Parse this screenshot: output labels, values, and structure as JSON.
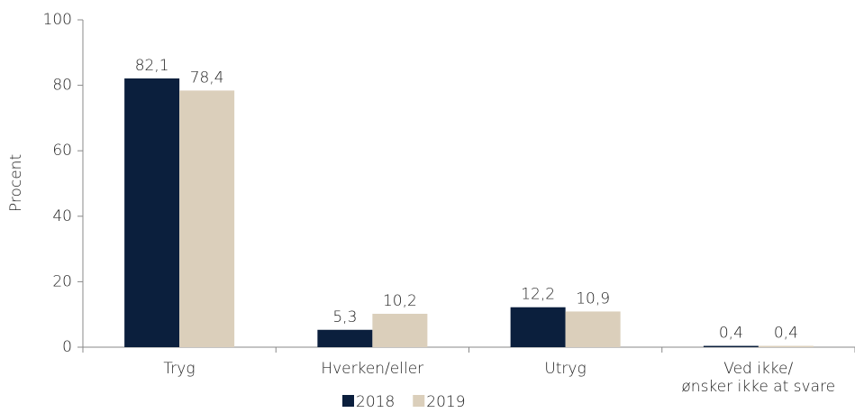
{
  "chart_data": {
    "type": "bar",
    "y_label": "Procent",
    "categories": [
      "Tryg",
      "Hverken/eller",
      "Utryg",
      "Ved ikke/\nønsker ikke at svare"
    ],
    "series": [
      {
        "name": "2018",
        "color": "#0b1f3d",
        "values": [
          82.1,
          5.3,
          12.2,
          0.4
        ],
        "value_labels": [
          "82,1",
          "5,3",
          "12,2",
          "0,4"
        ]
      },
      {
        "name": "2019",
        "color": "#dbcfbb",
        "values": [
          78.4,
          10.2,
          10.9,
          0.4
        ],
        "value_labels": [
          "78,4",
          "10,2",
          "10,9",
          "0,4"
        ]
      }
    ],
    "ylim": [
      0,
      100
    ],
    "yticks": [
      0,
      20,
      40,
      60,
      80,
      100
    ],
    "legend": "bottom"
  }
}
